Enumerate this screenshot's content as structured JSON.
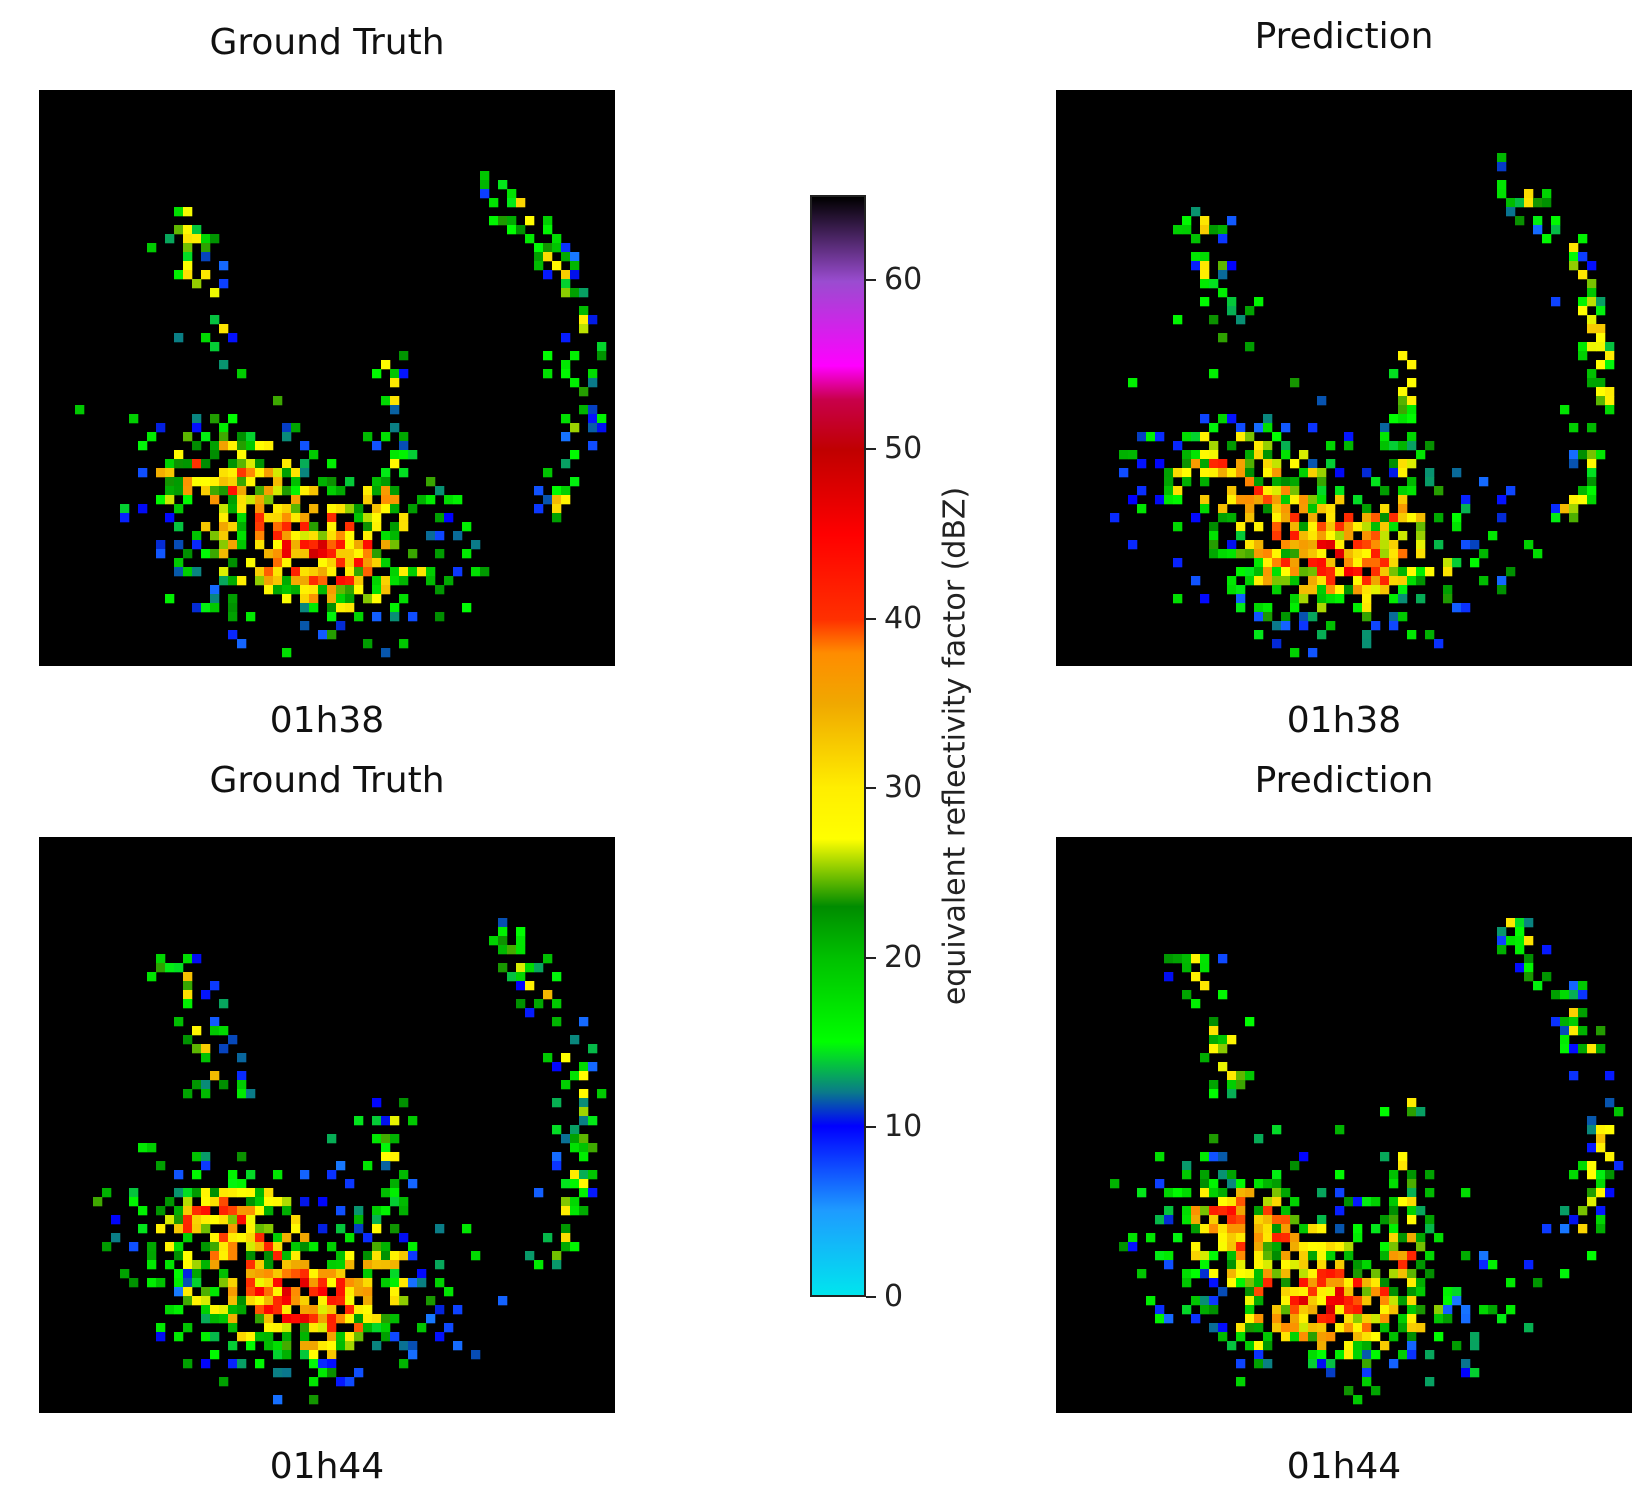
{
  "chart_data": {
    "type": "heatmap",
    "panels": [
      {
        "title": "Ground Truth",
        "time_label": "01h38"
      },
      {
        "title": "Prediction",
        "time_label": "01h38"
      },
      {
        "title": "Ground Truth",
        "time_label": "01h44"
      },
      {
        "title": "Prediction",
        "time_label": "01h44"
      }
    ],
    "colorbar": {
      "label": "equivalent reflectivity factor (dBZ)",
      "range": [
        0,
        65
      ],
      "ticks": [
        "0",
        "10",
        "20",
        "30",
        "40",
        "50",
        "60"
      ],
      "colormap": [
        [
          0,
          "#00e5ee"
        ],
        [
          5,
          "#1e9bff"
        ],
        [
          10,
          "#0000ff"
        ],
        [
          12,
          "#0a7a8a"
        ],
        [
          15,
          "#00ff00"
        ],
        [
          20,
          "#00c000"
        ],
        [
          23,
          "#008c00"
        ],
        [
          27,
          "#ffff00"
        ],
        [
          30,
          "#ffee00"
        ],
        [
          35,
          "#f0a800"
        ],
        [
          38,
          "#ff8c00"
        ],
        [
          40,
          "#ff3000"
        ],
        [
          45,
          "#ff0000"
        ],
        [
          50,
          "#c00000"
        ],
        [
          53,
          "#c8004a"
        ],
        [
          55,
          "#ff00ff"
        ],
        [
          60,
          "#9a4cd0"
        ],
        [
          65,
          "#000000"
        ]
      ]
    },
    "background_color": "#000000"
  }
}
